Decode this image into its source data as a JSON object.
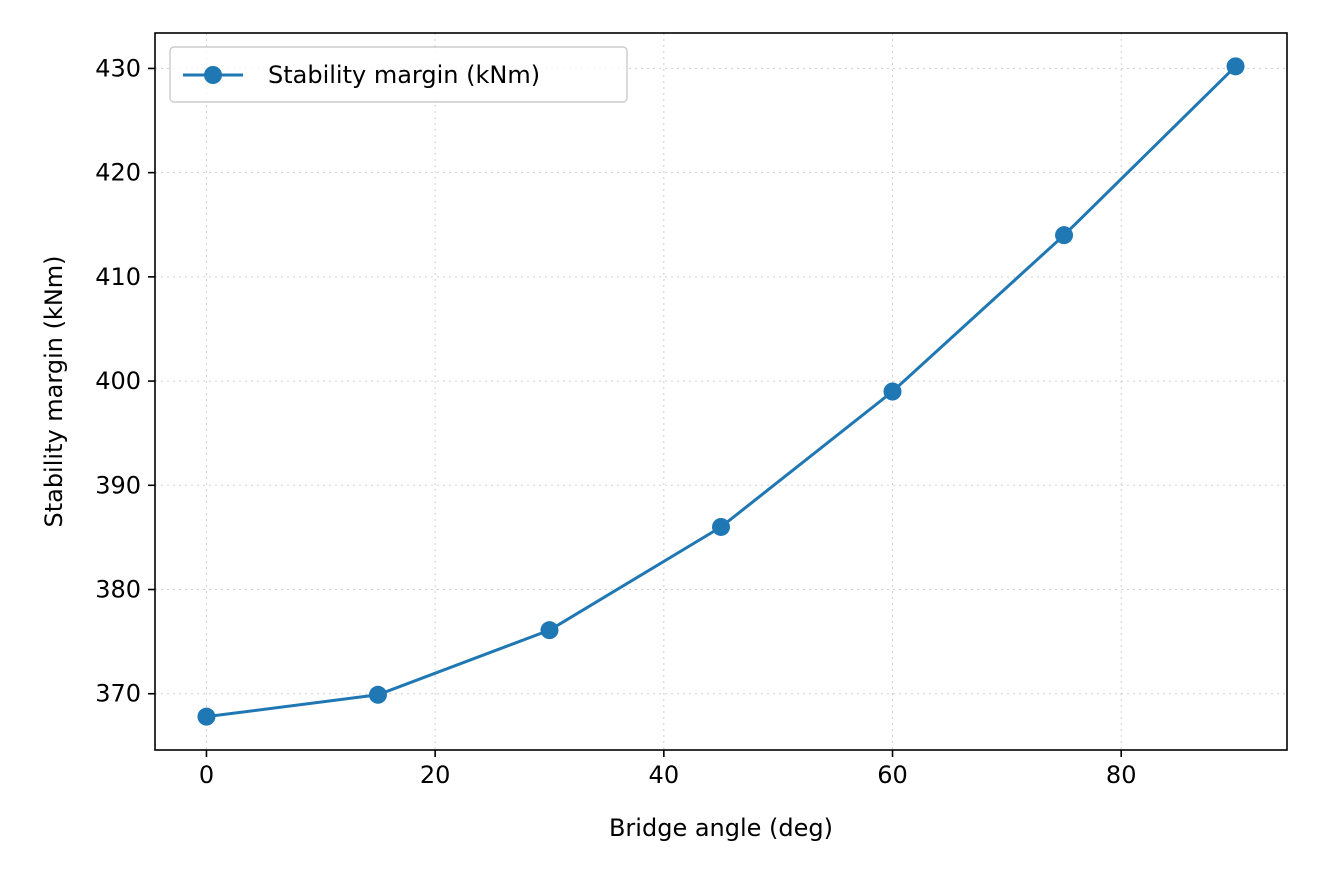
{
  "chart_data": {
    "type": "line",
    "title": "",
    "xlabel": "Bridge angle (deg)",
    "ylabel": "Stability margin (kNm)",
    "xlim": [
      -4.5,
      94.5
    ],
    "ylim": [
      364.6,
      433.4
    ],
    "xticks": [
      0,
      20,
      40,
      60,
      80
    ],
    "yticks": [
      370,
      380,
      390,
      400,
      410,
      420,
      430
    ],
    "grid": true,
    "legend_position": "top-left",
    "series": [
      {
        "name": "Stability margin (kNm)",
        "color": "#1f77b4",
        "marker": "circle",
        "x": [
          0,
          15,
          30,
          45,
          60,
          75,
          90
        ],
        "y": [
          367.8,
          369.9,
          376.1,
          386.0,
          399.0,
          414.0,
          430.2
        ]
      }
    ]
  }
}
